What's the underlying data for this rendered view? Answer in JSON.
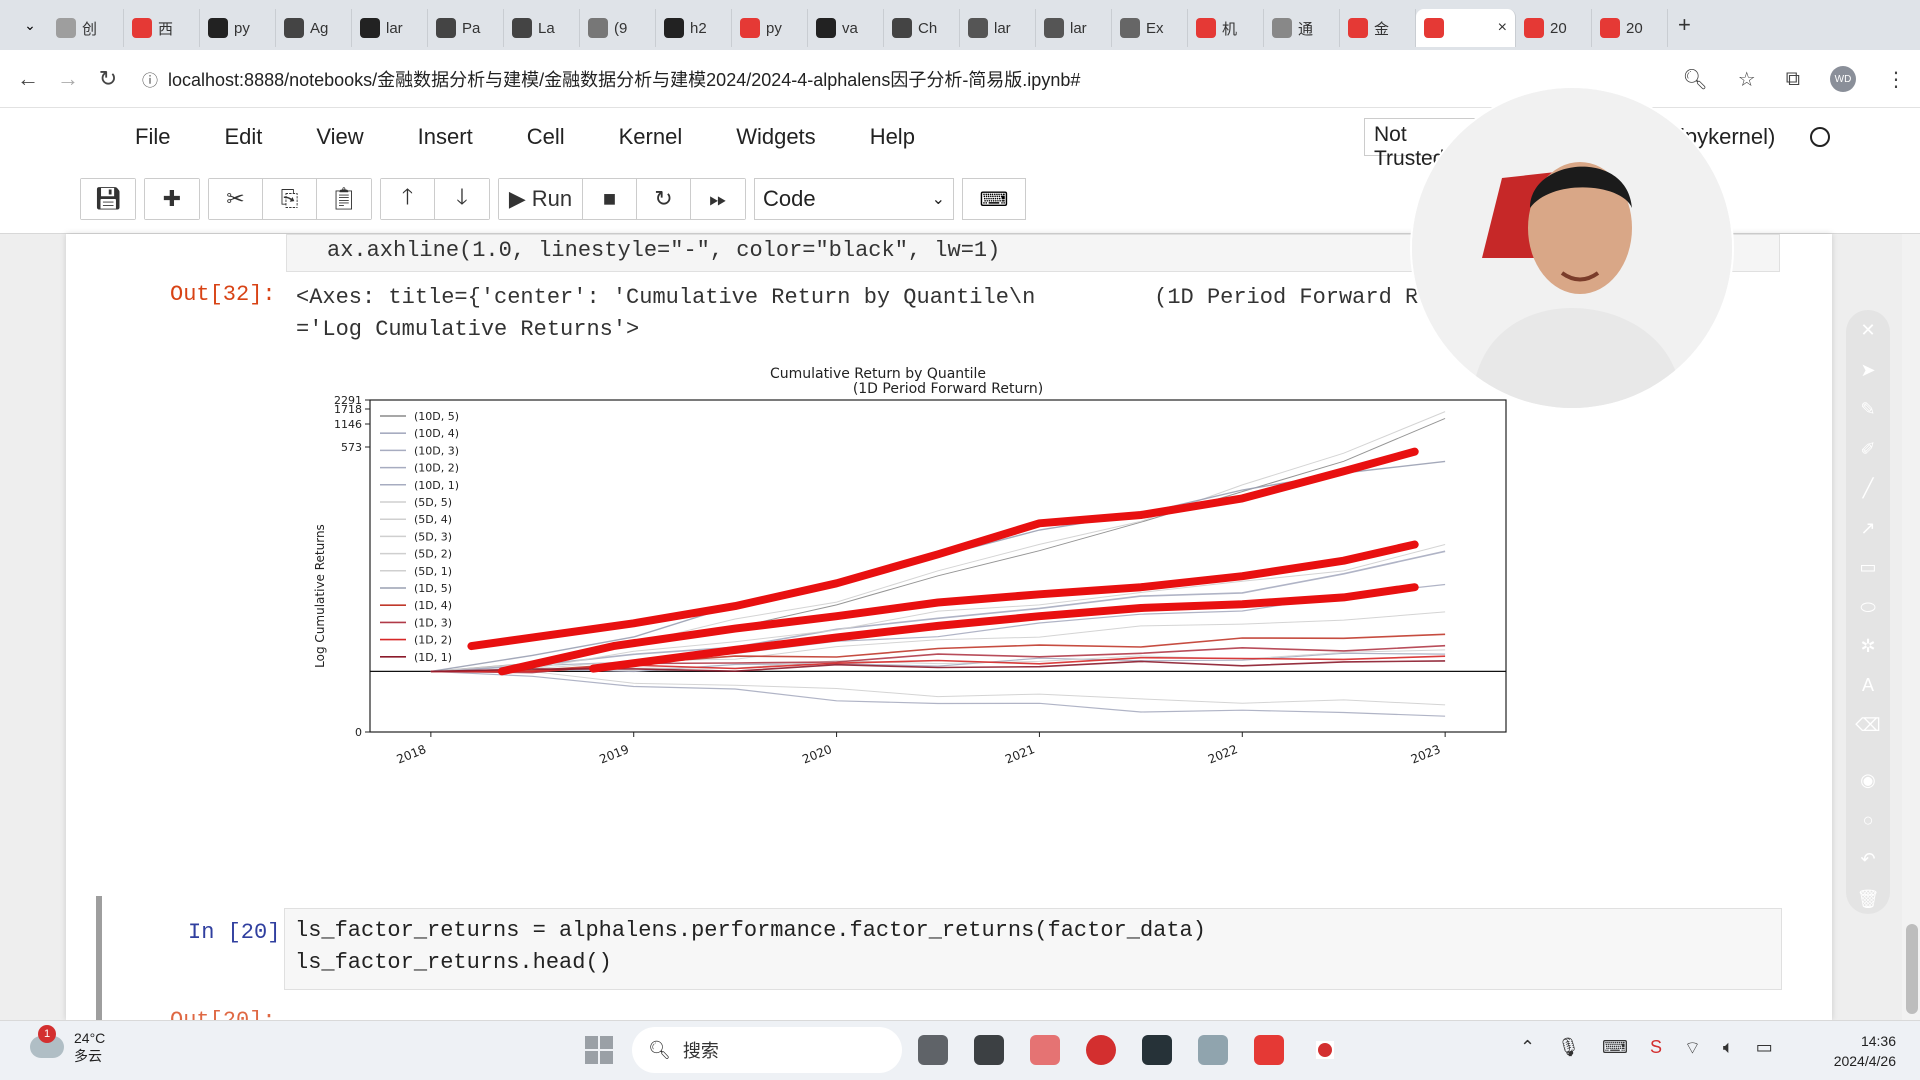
{
  "browser": {
    "tabs": [
      {
        "label": "创",
        "color": "#9e9e9e"
      },
      {
        "label": "西",
        "color": "#e53935"
      },
      {
        "label": "py",
        "color": "#222222"
      },
      {
        "label": "Ag",
        "color": "#444444"
      },
      {
        "label": "lar",
        "color": "#222222"
      },
      {
        "label": "Pa",
        "color": "#444444"
      },
      {
        "label": "La",
        "color": "#444444"
      },
      {
        "label": "(9",
        "color": "#777777"
      },
      {
        "label": "h2",
        "color": "#222222"
      },
      {
        "label": "py",
        "color": "#e53935"
      },
      {
        "label": "va",
        "color": "#222222"
      },
      {
        "label": "Ch",
        "color": "#444444"
      },
      {
        "label": "lar",
        "color": "#555555"
      },
      {
        "label": "lar",
        "color": "#555555"
      },
      {
        "label": "Ex",
        "color": "#666666"
      },
      {
        "label": "机",
        "color": "#e53935"
      },
      {
        "label": "通",
        "color": "#888888"
      },
      {
        "label": "金",
        "color": "#e53935"
      },
      {
        "label": "",
        "color": "#e53935",
        "active": true
      },
      {
        "label": "20",
        "color": "#e53935"
      },
      {
        "label": "20",
        "color": "#e53935"
      }
    ],
    "new_tab": "+",
    "close_glyph": "×",
    "url": "localhost:8888/notebooks/金融数据分析与建模/金融数据分析与建模2024/2024-4-alphalens因子分析-简易版.ipynb#",
    "profile_initials": "WD"
  },
  "jupyter": {
    "menu": [
      "File",
      "Edit",
      "View",
      "Insert",
      "Cell",
      "Kernel",
      "Widgets",
      "Help"
    ],
    "trusted": "Not Trusted",
    "kernel": "ipykernel)",
    "toolbar": {
      "run_label": "Run",
      "cell_type": "Code"
    }
  },
  "notebook": {
    "prev_code": "ax.axhline(1.0, linestyle=\"-\", color=\"black\", lw=1)",
    "out_prompt": "Out[32]:",
    "out_text_line1": "<Axes: title={'center': 'Cumulative Return by Quantile\\n         (1D Period Forward Return)'}, ylabel",
    "out_text_line2": "='Log Cumulative Returns'>",
    "in_prompt": "In  [20]:",
    "in_code_line1": "ls_factor_returns = alphalens.performance.factor_returns(factor_data)",
    "in_code_line2": "ls_factor_returns.head()",
    "next_out_prompt": "Out[20]:"
  },
  "chart_data": {
    "type": "line",
    "title": "Cumulative Return by Quantile",
    "subtitle": "(1D Period Forward Return)",
    "ylabel": "Log Cumulative Returns",
    "y_scale": "log",
    "yticks": [
      "0",
      "573",
      "1146",
      "1718",
      "2291"
    ],
    "xticks": [
      "2018",
      "2019",
      "2020",
      "2021",
      "2022",
      "2023"
    ],
    "x": [
      2018.0,
      2018.5,
      2019.0,
      2019.5,
      2020.0,
      2020.5,
      2021.0,
      2021.5,
      2022.0,
      2022.5,
      2023.0
    ],
    "legend_position": "top-left",
    "grid": false,
    "series": [
      {
        "name": "(10D, 5)",
        "color": "#8a8a8a",
        "width": 1,
        "values": [
          1,
          1.2,
          1.5,
          2.2,
          3.2,
          5.0,
          8.5,
          13,
          22,
          40,
          80
        ]
      },
      {
        "name": "(10D, 4)",
        "color": "#a7acc0",
        "width": 1.6,
        "values": [
          1,
          1.1,
          1.3,
          1.6,
          2.0,
          2.5,
          3.1,
          3.5,
          4.0,
          5.5,
          8.0
        ]
      },
      {
        "name": "(10D, 3)",
        "color": "#a7acc0",
        "width": 1.2,
        "values": [
          1,
          1.05,
          1.2,
          1.4,
          1.6,
          1.9,
          2.3,
          2.6,
          3.0,
          3.6,
          4.5
        ]
      },
      {
        "name": "(10D, 2)",
        "color": "#a7acc0",
        "width": 1.2,
        "values": [
          1,
          1.0,
          1.05,
          1.1,
          1.12,
          1.15,
          1.2,
          1.22,
          1.25,
          1.3,
          1.35
        ]
      },
      {
        "name": "(10D, 1)",
        "color": "#a7acc0",
        "width": 1.2,
        "values": [
          1,
          0.92,
          0.8,
          0.7,
          0.62,
          0.58,
          0.55,
          0.52,
          0.5,
          0.48,
          0.46
        ]
      },
      {
        "name": "(5D, 5)",
        "color": "#cfcfcf",
        "width": 1,
        "values": [
          1,
          1.2,
          1.6,
          2.4,
          3.5,
          5.5,
          9.0,
          14,
          24,
          45,
          90
        ]
      },
      {
        "name": "(5D, 4)",
        "color": "#cfcfcf",
        "width": 1,
        "values": [
          1,
          1.1,
          1.35,
          1.7,
          2.1,
          2.7,
          3.3,
          3.9,
          4.6,
          6.0,
          9.0
        ]
      },
      {
        "name": "(5D, 3)",
        "color": "#cfcfcf",
        "width": 1,
        "values": [
          1,
          1.05,
          1.15,
          1.3,
          1.5,
          1.7,
          1.9,
          2.1,
          2.3,
          2.5,
          2.8
        ]
      },
      {
        "name": "(5D, 2)",
        "color": "#cfcfcf",
        "width": 1,
        "values": [
          1,
          1.0,
          1.06,
          1.1,
          1.14,
          1.18,
          1.2,
          1.25,
          1.3,
          1.36,
          1.45
        ]
      },
      {
        "name": "(5D, 1)",
        "color": "#cfcfcf",
        "width": 1,
        "values": [
          1,
          0.95,
          0.85,
          0.78,
          0.72,
          0.68,
          0.65,
          0.62,
          0.6,
          0.58,
          0.56
        ]
      },
      {
        "name": "(1D, 5)",
        "color": "#9aa0b2",
        "width": 1.4,
        "values": [
          1,
          1.3,
          1.9,
          3.0,
          4.8,
          7.5,
          11,
          16,
          23,
          30,
          38
        ]
      },
      {
        "name": "(1D, 4)",
        "color": "#c0392b",
        "width": 1.6,
        "values": [
          1,
          1.05,
          1.15,
          1.25,
          1.35,
          1.45,
          1.55,
          1.6,
          1.7,
          1.8,
          1.9
        ]
      },
      {
        "name": "(1D, 3)",
        "color": "#b03a48",
        "width": 1.6,
        "values": [
          1,
          1.03,
          1.1,
          1.16,
          1.22,
          1.28,
          1.33,
          1.38,
          1.44,
          1.5,
          1.56
        ]
      },
      {
        "name": "(1D, 2)",
        "color": "#d62828",
        "width": 1.6,
        "values": [
          1,
          1.02,
          1.06,
          1.1,
          1.14,
          1.17,
          1.2,
          1.22,
          1.25,
          1.28,
          1.3
        ]
      },
      {
        "name": "(1D, 1)",
        "color": "#8b1a2b",
        "width": 1.6,
        "values": [
          1,
          1.01,
          1.03,
          1.05,
          1.07,
          1.09,
          1.11,
          1.13,
          1.15,
          1.17,
          1.2
        ]
      }
    ],
    "annotation_strokes": [
      {
        "color": "#e81010",
        "points": [
          [
            2018.2,
            1.55
          ],
          [
            2019.0,
            2.3
          ],
          [
            2019.5,
            3.1
          ],
          [
            2020.0,
            4.6
          ],
          [
            2020.5,
            7.6
          ],
          [
            2021.0,
            13
          ],
          [
            2021.5,
            15
          ],
          [
            2022.0,
            20
          ],
          [
            2022.5,
            32
          ],
          [
            2022.85,
            45
          ]
        ]
      },
      {
        "color": "#e81010",
        "points": [
          [
            2018.35,
            1.0
          ],
          [
            2018.9,
            1.55
          ],
          [
            2019.5,
            2.1
          ],
          [
            2020.0,
            2.6
          ],
          [
            2020.5,
            3.3
          ],
          [
            2021.0,
            3.8
          ],
          [
            2021.5,
            4.3
          ],
          [
            2022.0,
            5.2
          ],
          [
            2022.5,
            6.8
          ],
          [
            2022.85,
            9.0
          ]
        ]
      },
      {
        "color": "#e81010",
        "points": [
          [
            2018.8,
            1.05
          ],
          [
            2019.5,
            1.45
          ],
          [
            2020.0,
            1.8
          ],
          [
            2020.5,
            2.2
          ],
          [
            2021.0,
            2.6
          ],
          [
            2021.5,
            3.0
          ],
          [
            2022.0,
            3.2
          ],
          [
            2022.5,
            3.6
          ],
          [
            2022.85,
            4.3
          ]
        ]
      }
    ]
  },
  "webcam": {
    "label": "presenter"
  },
  "taskbar": {
    "weather_badge": "1",
    "temperature": "24°C",
    "weather_desc": "多云",
    "search_label": "搜索",
    "time": "14:36",
    "date": "2024/4/26"
  }
}
